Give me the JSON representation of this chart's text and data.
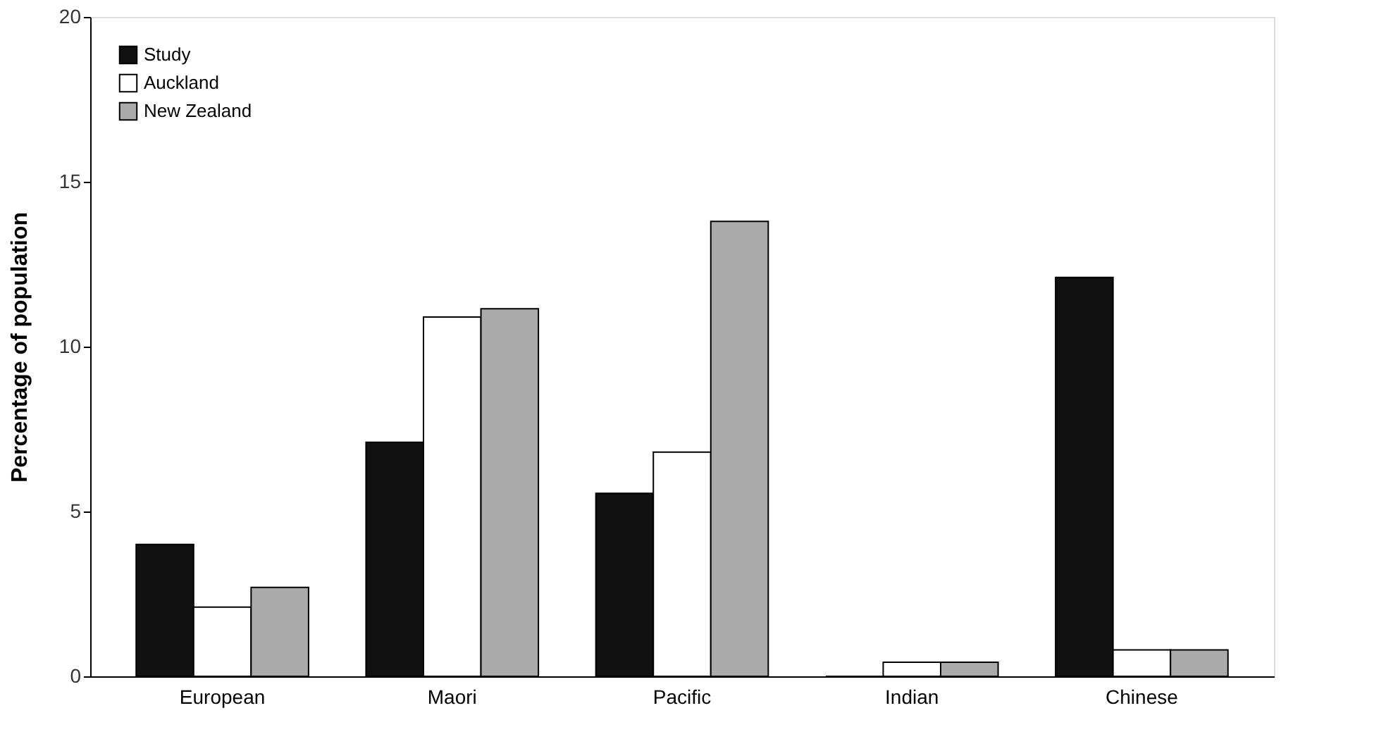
{
  "chart_data": {
    "type": "bar",
    "ylabel": "Percentage of population",
    "categories": [
      "European",
      "Maori",
      "Pacific",
      "Indian",
      "Chinese"
    ],
    "series": [
      {
        "name": "Study",
        "color": "#111111",
        "values": [
          4.0,
          7.1,
          5.55,
          0,
          12.1
        ]
      },
      {
        "name": "Auckland",
        "color": "#ffffff",
        "values": [
          2.1,
          10.9,
          6.8,
          0.43,
          0.8
        ]
      },
      {
        "name": "New Zealand",
        "color": "#aaaaaa",
        "values": [
          2.7,
          11.15,
          13.8,
          0.43,
          0.8
        ]
      }
    ],
    "ylim": [
      0,
      20
    ],
    "yticks": [
      0,
      5,
      10,
      15,
      20
    ],
    "grid": false,
    "legend": "top left"
  }
}
